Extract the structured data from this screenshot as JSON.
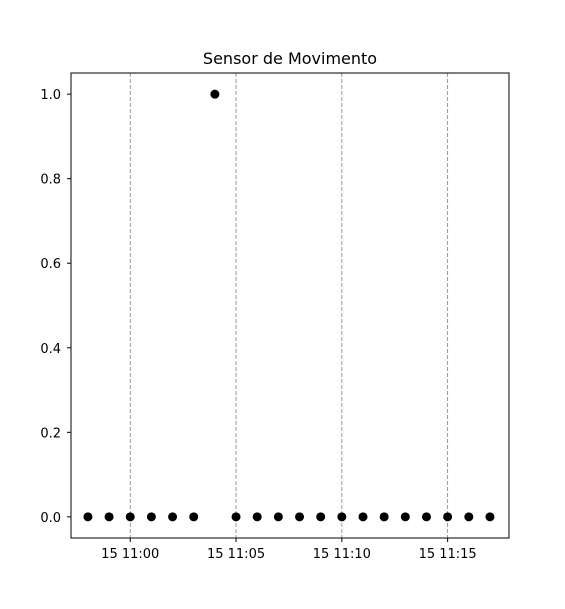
{
  "chart_data": {
    "type": "scatter",
    "title": "Sensor de Movimento",
    "xlabel": "",
    "ylabel": "",
    "x": [
      "10:58",
      "10:59",
      "11:00",
      "11:01",
      "11:02",
      "11:03",
      "11:04",
      "11:05",
      "11:06",
      "11:07",
      "11:08",
      "11:09",
      "11:10",
      "11:11",
      "11:12",
      "11:13",
      "11:14",
      "11:15",
      "11:16",
      "11:17"
    ],
    "y": [
      0,
      0,
      0,
      0,
      0,
      0,
      1,
      0,
      0,
      0,
      0,
      0,
      0,
      0,
      0,
      0,
      0,
      0,
      0,
      0
    ],
    "xlim": [
      "10:57.2",
      "11:17.9"
    ],
    "ylim": [
      -0.05,
      1.05
    ],
    "x_ticks": [
      {
        "time": "11:00",
        "label": "15 11:00"
      },
      {
        "time": "11:05",
        "label": "15 11:05"
      },
      {
        "time": "11:10",
        "label": "15 11:10"
      },
      {
        "time": "11:15",
        "label": "15 11:15"
      }
    ],
    "y_ticks": [
      {
        "value": 0.0,
        "label": "0.0"
      },
      {
        "value": 0.2,
        "label": "0.2"
      },
      {
        "value": 0.4,
        "label": "0.4"
      },
      {
        "value": 0.6,
        "label": "0.6"
      },
      {
        "value": 0.8,
        "label": "0.8"
      },
      {
        "value": 1.0,
        "label": "1.0"
      }
    ],
    "grid": "x-only dashed",
    "marker_color": "#000000",
    "grid_color": "#808080"
  }
}
